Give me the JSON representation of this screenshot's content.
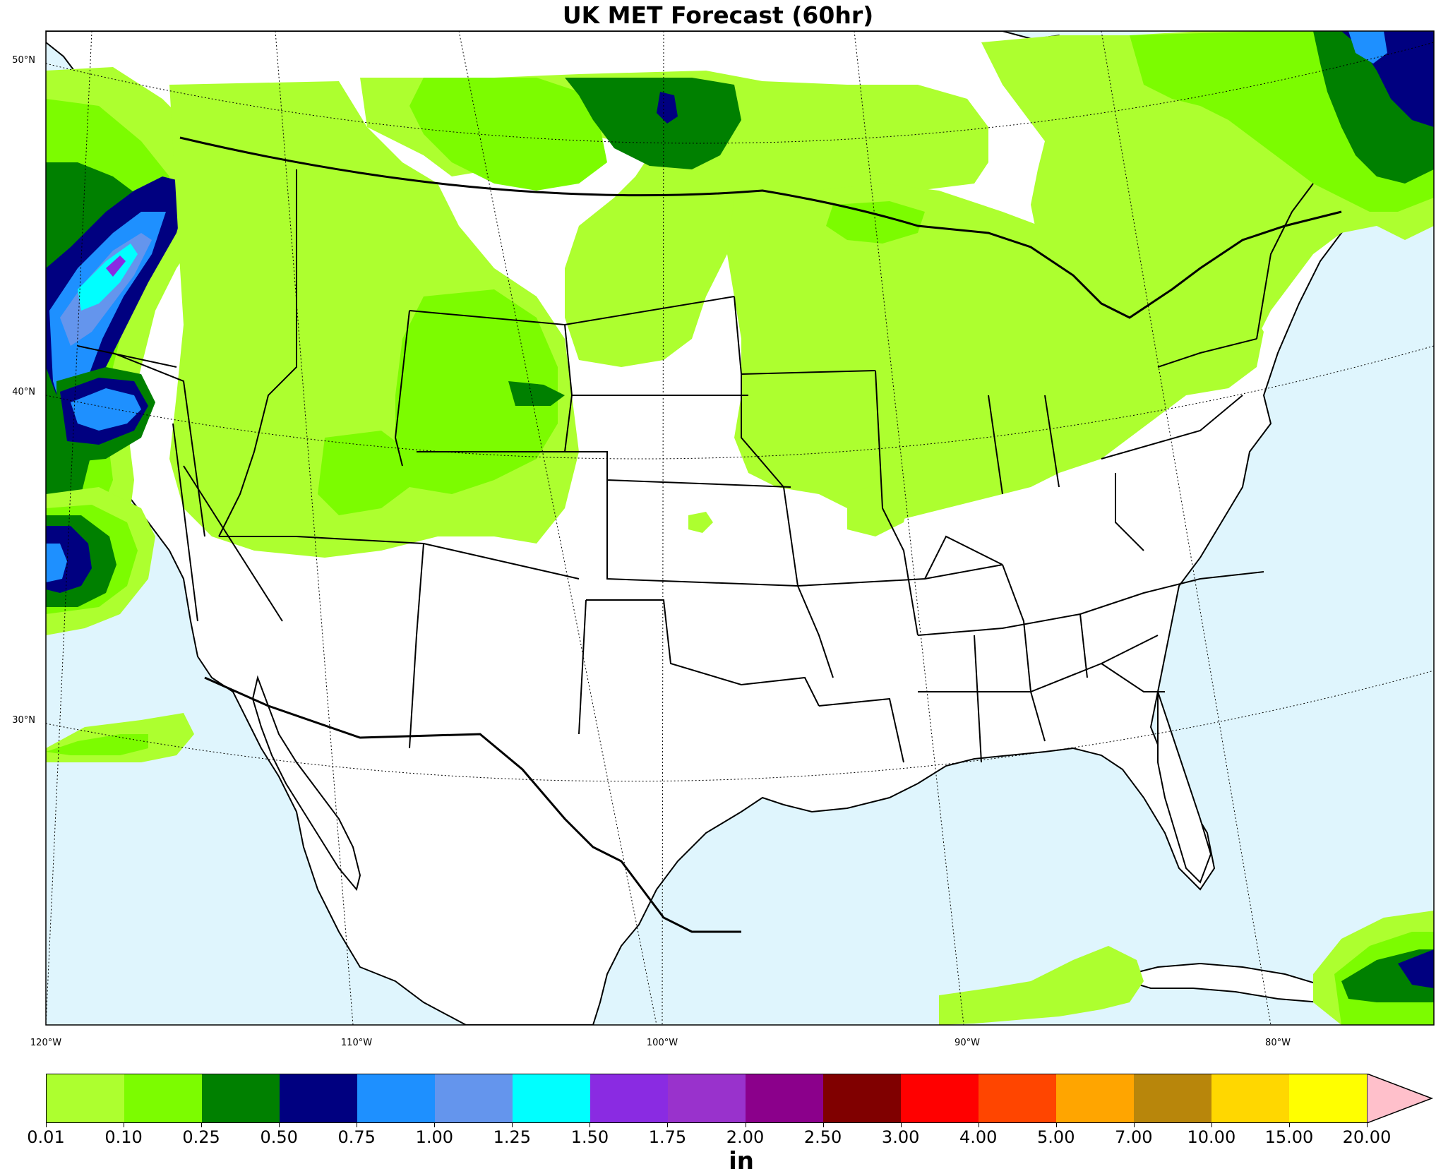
{
  "title": "UK MET Forecast (60hr)",
  "lat_labels": [
    "50°N",
    "40°N",
    "30°N"
  ],
  "lon_labels": [
    "120°W",
    "110°W",
    "100°W",
    "90°W",
    "80°W"
  ],
  "colors": {
    "ocean": "#dff5fd",
    "land": "#ffffff",
    "outline": "#000000",
    "arrow": "#ffc0cb"
  },
  "legend": {
    "unit": "in",
    "ticks": [
      "0.01",
      "0.10",
      "0.25",
      "0.50",
      "0.75",
      "1.00",
      "1.25",
      "1.50",
      "1.75",
      "2.00",
      "2.50",
      "3.00",
      "4.00",
      "5.00",
      "7.00",
      "10.00",
      "15.00",
      "20.00"
    ],
    "colors": [
      "#adff2f",
      "#7cfc00",
      "#008000",
      "#000080",
      "#1e90ff",
      "#6495ed",
      "#00ffff",
      "#8a2be2",
      "#9932cc",
      "#8b008b",
      "#800000",
      "#ff0000",
      "#ff4500",
      "#ffa500",
      "#b8860b",
      "#ffd700",
      "#ffff00"
    ],
    "extend": "max"
  },
  "precip_areas": [
    {
      "region": "Pacific Northwest coast",
      "levels": [
        "0.01",
        "0.10",
        "0.25",
        "0.50",
        "0.75",
        "1.00",
        "1.25",
        "1.50"
      ]
    },
    {
      "region": "Northern California coast",
      "levels": [
        "0.01",
        "0.10",
        "0.25",
        "0.50",
        "0.75"
      ]
    },
    {
      "region": "Southern California coast",
      "levels": [
        "0.01",
        "0.10",
        "0.25",
        "0.50",
        "0.75"
      ]
    },
    {
      "region": "Northern Rockies and Plains",
      "levels": [
        "0.01",
        "0.10",
        "0.25"
      ]
    },
    {
      "region": "Upper Midwest and Great Lakes",
      "levels": [
        "0.01",
        "0.10"
      ]
    },
    {
      "region": "Southern Canada / North Dakota",
      "levels": [
        "0.01",
        "0.10",
        "0.25",
        "0.50"
      ]
    },
    {
      "region": "New England / Quebec",
      "levels": [
        "0.01",
        "0.10",
        "0.25",
        "0.50",
        "0.75"
      ]
    },
    {
      "region": "Caribbean",
      "levels": [
        "0.01",
        "0.10",
        "0.25",
        "0.50"
      ]
    }
  ]
}
